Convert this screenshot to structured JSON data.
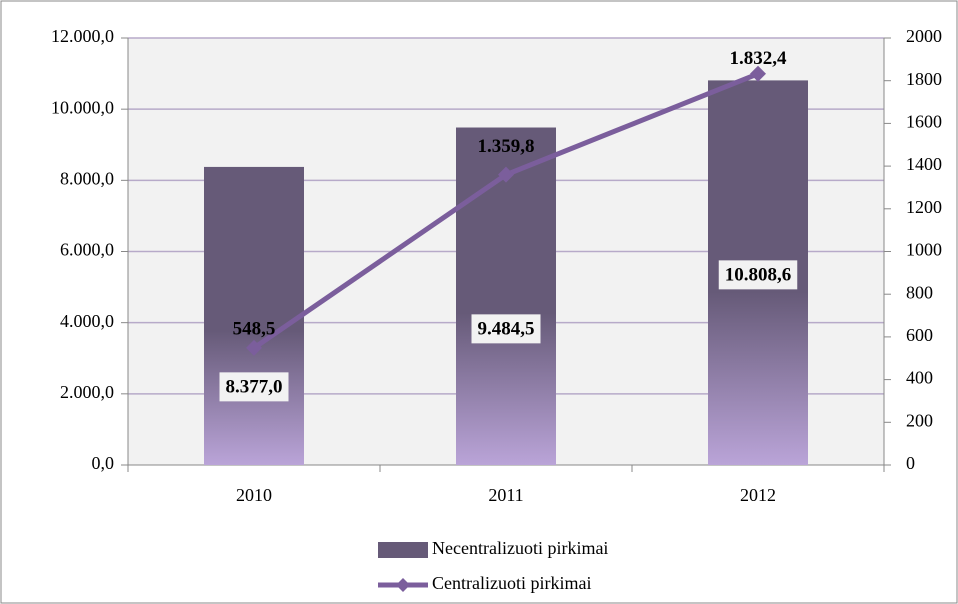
{
  "chart_data": {
    "type": "bar",
    "categories": [
      "2010",
      "2011",
      "2012"
    ],
    "series": [
      {
        "name": "Necentralizuoti pirkimai",
        "type": "bar",
        "color": "#665a78",
        "values": [
          8377.0,
          9484.5,
          10808.6
        ],
        "value_labels": [
          "8.377,0",
          "9.484,5",
          "10.808,6"
        ]
      },
      {
        "name": "Centralizuoti pirkimai",
        "type": "line",
        "axis": "y2",
        "color": "#7b5e9c",
        "values": [
          548.5,
          1359.8,
          1832.4
        ],
        "value_labels": [
          "548,5",
          "1.359,8",
          "1.832,4"
        ]
      }
    ],
    "ylim": [
      0,
      12000
    ],
    "yticks": [
      {
        "value": 0,
        "label": "0,0"
      },
      {
        "value": 2000,
        "label": "2.000,0"
      },
      {
        "value": 4000,
        "label": "4.000,0"
      },
      {
        "value": 6000,
        "label": "6.000,0"
      },
      {
        "value": 8000,
        "label": "8.000,0"
      },
      {
        "value": 10000,
        "label": "10.000,0"
      },
      {
        "value": 12000,
        "label": "12.000,0"
      }
    ],
    "y2lim": [
      0,
      2000
    ],
    "y2ticks": [
      0,
      200,
      400,
      600,
      800,
      1000,
      1200,
      1400,
      1600,
      1800,
      2000
    ],
    "grid": true,
    "legend": "bottom"
  }
}
